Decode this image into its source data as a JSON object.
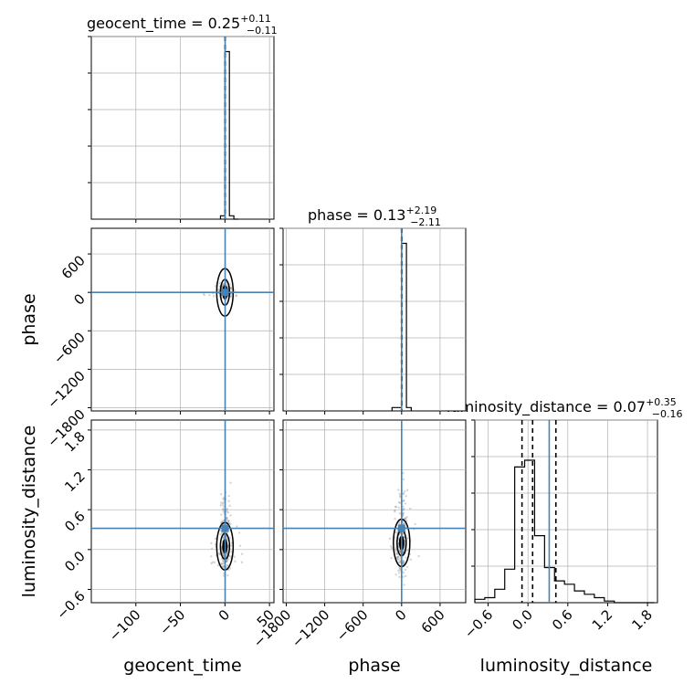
{
  "figure": {
    "colors": {
      "truth": "#4682b4",
      "hist": "#000000",
      "grid": "#b0b0b0",
      "points": "#888888"
    }
  },
  "chart_data": [
    {
      "type": "bar",
      "panel": "geocent_time histogram",
      "title": "geocent_time = 0.25",
      "title_sup": "+0.11",
      "title_sub": "−0.11",
      "xlim": [
        -150,
        55
      ],
      "bin_edges": [
        -5,
        0,
        5,
        10,
        15
      ],
      "values": [
        0.02,
        1.0,
        0.02,
        0.0
      ],
      "ylim": [
        0,
        1.0
      ],
      "quantiles": [
        0.14,
        0.25,
        0.36
      ],
      "truth": 0.2
    },
    {
      "type": "bar",
      "panel": "phase histogram",
      "title": "phase = 0.13",
      "title_sup": "+2.19",
      "title_sub": "−2.11",
      "xlim": [
        -1850,
        1000
      ],
      "bin_edges": [
        -150,
        -75,
        0,
        75,
        150
      ],
      "values": [
        0.02,
        0.02,
        1.0,
        0.02
      ],
      "ylim": [
        0,
        1.0
      ],
      "quantiles": [
        -1.98,
        0.13,
        2.32
      ],
      "truth": 0.0
    },
    {
      "type": "bar",
      "panel": "luminosity_distance histogram",
      "title": "luminosity_distance = 0.07",
      "title_sup": "+0.35",
      "title_sub": "−0.16",
      "xlim": [
        -0.8,
        1.95
      ],
      "bin_edges": [
        -0.8,
        -0.65,
        -0.5,
        -0.35,
        -0.2,
        -0.05,
        0.1,
        0.25,
        0.4,
        0.55,
        0.7,
        0.85,
        1.0,
        1.15,
        1.3,
        1.45,
        1.6,
        1.75,
        1.9
      ],
      "values": [
        0.02,
        0.03,
        0.08,
        0.2,
        0.81,
        0.85,
        0.4,
        0.21,
        0.13,
        0.11,
        0.07,
        0.05,
        0.03,
        0.01,
        0.0,
        0.0,
        0.0,
        0.0
      ],
      "ylim": [
        0,
        1.0
      ],
      "quantiles": [
        -0.09,
        0.07,
        0.42
      ],
      "truth": 0.32
    },
    {
      "type": "scatter",
      "panel": "phase vs geocent_time",
      "xlim": [
        -150,
        55
      ],
      "ylim": [
        -1850,
        1000
      ],
      "truth": [
        0.2,
        0.0
      ],
      "point_cloud": {
        "x_center": 0,
        "x_spread": 3,
        "y_center": 0,
        "y_spread": 60
      }
    },
    {
      "type": "scatter",
      "panel": "luminosity_distance vs geocent_time",
      "xlim": [
        -150,
        55
      ],
      "ylim": [
        -0.8,
        1.95
      ],
      "truth": [
        0.2,
        0.32
      ],
      "point_cloud": {
        "x_center": 0,
        "x_spread": 3,
        "y_center": 0.05,
        "y_spread": 0.35
      }
    },
    {
      "type": "scatter",
      "panel": "luminosity_distance vs phase",
      "xlim": [
        -1850,
        1000
      ],
      "ylim": [
        -0.8,
        1.95
      ],
      "truth": [
        0.0,
        0.32
      ],
      "point_cloud": {
        "x_center": 0,
        "x_spread": 40,
        "y_center": 0.1,
        "y_spread": 0.4
      }
    }
  ],
  "axes": {
    "geocent_time": {
      "label": "geocent_time",
      "ticks": [
        -100,
        -50,
        0,
        50
      ],
      "tick_labels": [
        "−100",
        "−50",
        "0",
        "50"
      ]
    },
    "phase": {
      "label": "phase",
      "ticks": [
        -1800,
        -1200,
        -600,
        0,
        600
      ],
      "tick_labels": [
        "−1800",
        "−1200",
        "−600",
        "0",
        "600"
      ]
    },
    "luminosity_distance": {
      "label": "luminosity_distance",
      "ticks": [
        -0.6,
        0.0,
        0.6,
        1.2,
        1.8
      ],
      "tick_labels": [
        "−0.6",
        "0.0",
        "0.6",
        "1.2",
        "1.8"
      ]
    }
  }
}
